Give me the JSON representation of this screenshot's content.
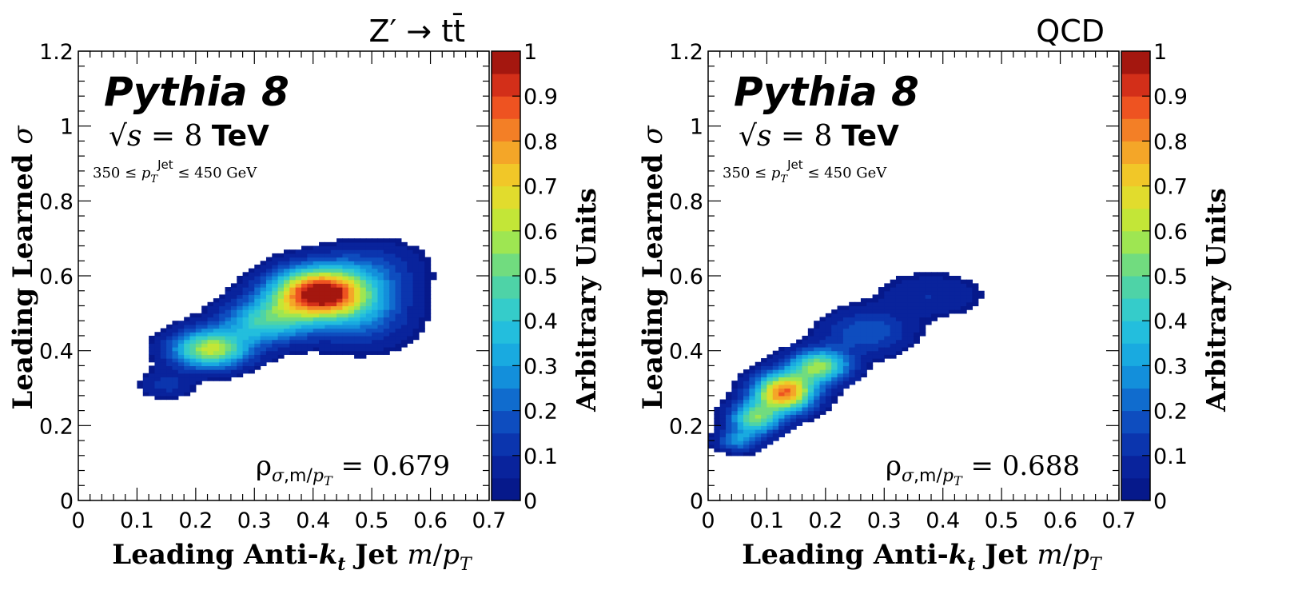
{
  "chart_data": [
    {
      "type": "heatmap",
      "title": "Z′ → tt̄",
      "annotations": {
        "generator": "Pythia 8",
        "energy": "√s = 8 TeV",
        "pt_cut": "350 ≤ p_T^Jet ≤ 450 GeV",
        "correlation": "ρ_σ,m/p_T = 0.679"
      },
      "xlabel": "Leading Anti-k_t Jet m/p_T",
      "ylabel": "Leading Learned σ",
      "zlabel": "Arbitrary Units",
      "xlim": [
        0,
        0.7
      ],
      "ylim": [
        0,
        1.2
      ],
      "zlim": [
        0,
        1
      ],
      "x_ticks": [
        "0",
        "0.1",
        "0.2",
        "0.3",
        "0.4",
        "0.5",
        "0.6",
        "0.7"
      ],
      "y_ticks": [
        "0",
        "0.2",
        "0.4",
        "0.6",
        "0.8",
        "1",
        "1.2"
      ],
      "z_ticks": [
        "0",
        "0.1",
        "0.2",
        "0.3",
        "0.4",
        "0.5",
        "0.6",
        "0.7",
        "0.8",
        "0.9",
        "1"
      ],
      "grid": false,
      "colormap": "rainbow (dark blue → cyan → green → yellow → orange → red → dark red)",
      "peaks": [
        {
          "x": 0.41,
          "y": 0.555,
          "sx": 0.055,
          "sy": 0.045,
          "amp": 1.0
        },
        {
          "x": 0.225,
          "y": 0.405,
          "sx": 0.045,
          "sy": 0.035,
          "amp": 0.62
        },
        {
          "x": 0.32,
          "y": 0.48,
          "sx": 0.05,
          "sy": 0.04,
          "amp": 0.42
        },
        {
          "x": 0.48,
          "y": 0.5,
          "sx": 0.06,
          "sy": 0.06,
          "amp": 0.22
        },
        {
          "x": 0.5,
          "y": 0.62,
          "sx": 0.06,
          "sy": 0.05,
          "amp": 0.14
        },
        {
          "x": 0.15,
          "y": 0.31,
          "sx": 0.03,
          "sy": 0.025,
          "amp": 0.12
        }
      ]
    },
    {
      "type": "heatmap",
      "title": "QCD",
      "annotations": {
        "generator": "Pythia 8",
        "energy": "√s = 8 TeV",
        "pt_cut": "350 ≤ p_T^Jet ≤ 450 GeV",
        "correlation": "ρ_σ,m/p_T = 0.688"
      },
      "xlabel": "Leading Anti-k_t Jet m/p_T",
      "ylabel": "Leading Learned σ",
      "zlabel": "Arbitrary Units",
      "xlim": [
        0,
        0.7
      ],
      "ylim": [
        0,
        1.2
      ],
      "zlim": [
        0,
        1
      ],
      "x_ticks": [
        "0",
        "0.1",
        "0.2",
        "0.3",
        "0.4",
        "0.5",
        "0.6",
        "0.7"
      ],
      "y_ticks": [
        "0",
        "0.2",
        "0.4",
        "0.6",
        "0.8",
        "1",
        "1.2"
      ],
      "z_ticks": [
        "0",
        "0.1",
        "0.2",
        "0.3",
        "0.4",
        "0.5",
        "0.6",
        "0.7",
        "0.8",
        "0.9",
        "1"
      ],
      "grid": false,
      "colormap": "rainbow (dark blue → cyan → green → yellow → orange → red → dark red)",
      "peaks": [
        {
          "x": 0.13,
          "y": 0.29,
          "sx": 0.035,
          "sy": 0.035,
          "amp": 0.85
        },
        {
          "x": 0.19,
          "y": 0.36,
          "sx": 0.035,
          "sy": 0.03,
          "amp": 0.55
        },
        {
          "x": 0.08,
          "y": 0.22,
          "sx": 0.03,
          "sy": 0.03,
          "amp": 0.5
        },
        {
          "x": 0.27,
          "y": 0.45,
          "sx": 0.05,
          "sy": 0.04,
          "amp": 0.2
        },
        {
          "x": 0.38,
          "y": 0.55,
          "sx": 0.06,
          "sy": 0.04,
          "amp": 0.1
        },
        {
          "x": 0.05,
          "y": 0.16,
          "sx": 0.025,
          "sy": 0.02,
          "amp": 0.25
        }
      ]
    }
  ]
}
